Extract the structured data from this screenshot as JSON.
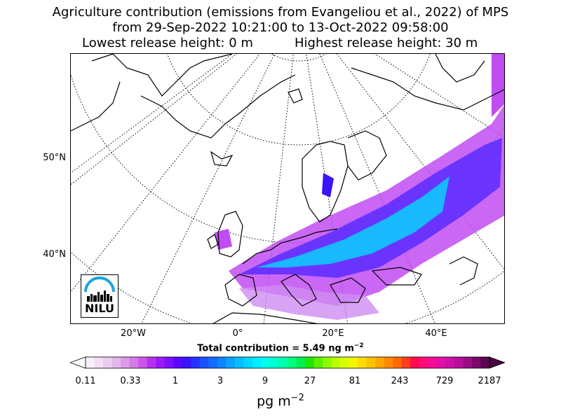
{
  "title": {
    "line1": "Agriculture contribution (emissions from Evangeliou et al., 2022) of MPS",
    "line2": "from 29-Sep-2022 10:21:00 to 13-Oct-2022 09:58:00",
    "lowest": "Lowest release height: 0 m",
    "highest": "Highest release height: 30 m"
  },
  "map": {
    "lat_labels": [
      "50°N",
      "40°N"
    ],
    "lon_labels": [
      "20°W",
      "0°",
      "20°E",
      "40°E"
    ],
    "logo": "NILU",
    "colors": {
      "logo_blue": "#1aa3e0",
      "graticule": "#000000",
      "coast": "#000000"
    }
  },
  "total_contribution": "Total contribution = 5.49 ng m",
  "total_exponent": "−2",
  "colorbar": {
    "ticks": [
      "0.11",
      "0.33",
      "1",
      "3",
      "9",
      "27",
      "81",
      "243",
      "729",
      "2187"
    ],
    "colors": [
      "#f7eef9",
      "#f1dff4",
      "#ebcdf0",
      "#e3b6ec",
      "#dc9be9",
      "#d47ae8",
      "#cc55ec",
      "#b431f0",
      "#9a1af7",
      "#7e0ffc",
      "#5a07ff",
      "#3a13ff",
      "#2532ff",
      "#1850ff",
      "#126bff",
      "#0c86ff",
      "#0aa2ff",
      "#07bcff",
      "#03d6ff",
      "#00eeff",
      "#00fff0",
      "#00ffd0",
      "#00ffac",
      "#00ff80",
      "#00f050",
      "#21e400",
      "#59f000",
      "#8cfa00",
      "#b8ff00",
      "#dcff00",
      "#f5f500",
      "#ffdd00",
      "#ffc200",
      "#ffa500",
      "#ff8a00",
      "#ff6a00",
      "#ff3e1b",
      "#ff0a4e",
      "#ff0c7a",
      "#f40d96",
      "#e40ea8",
      "#d00fa8",
      "#b80f9a",
      "#9a0c86",
      "#7c086c",
      "#5a0550"
    ]
  },
  "unit": "pg m",
  "unit_exponent": "−2"
}
